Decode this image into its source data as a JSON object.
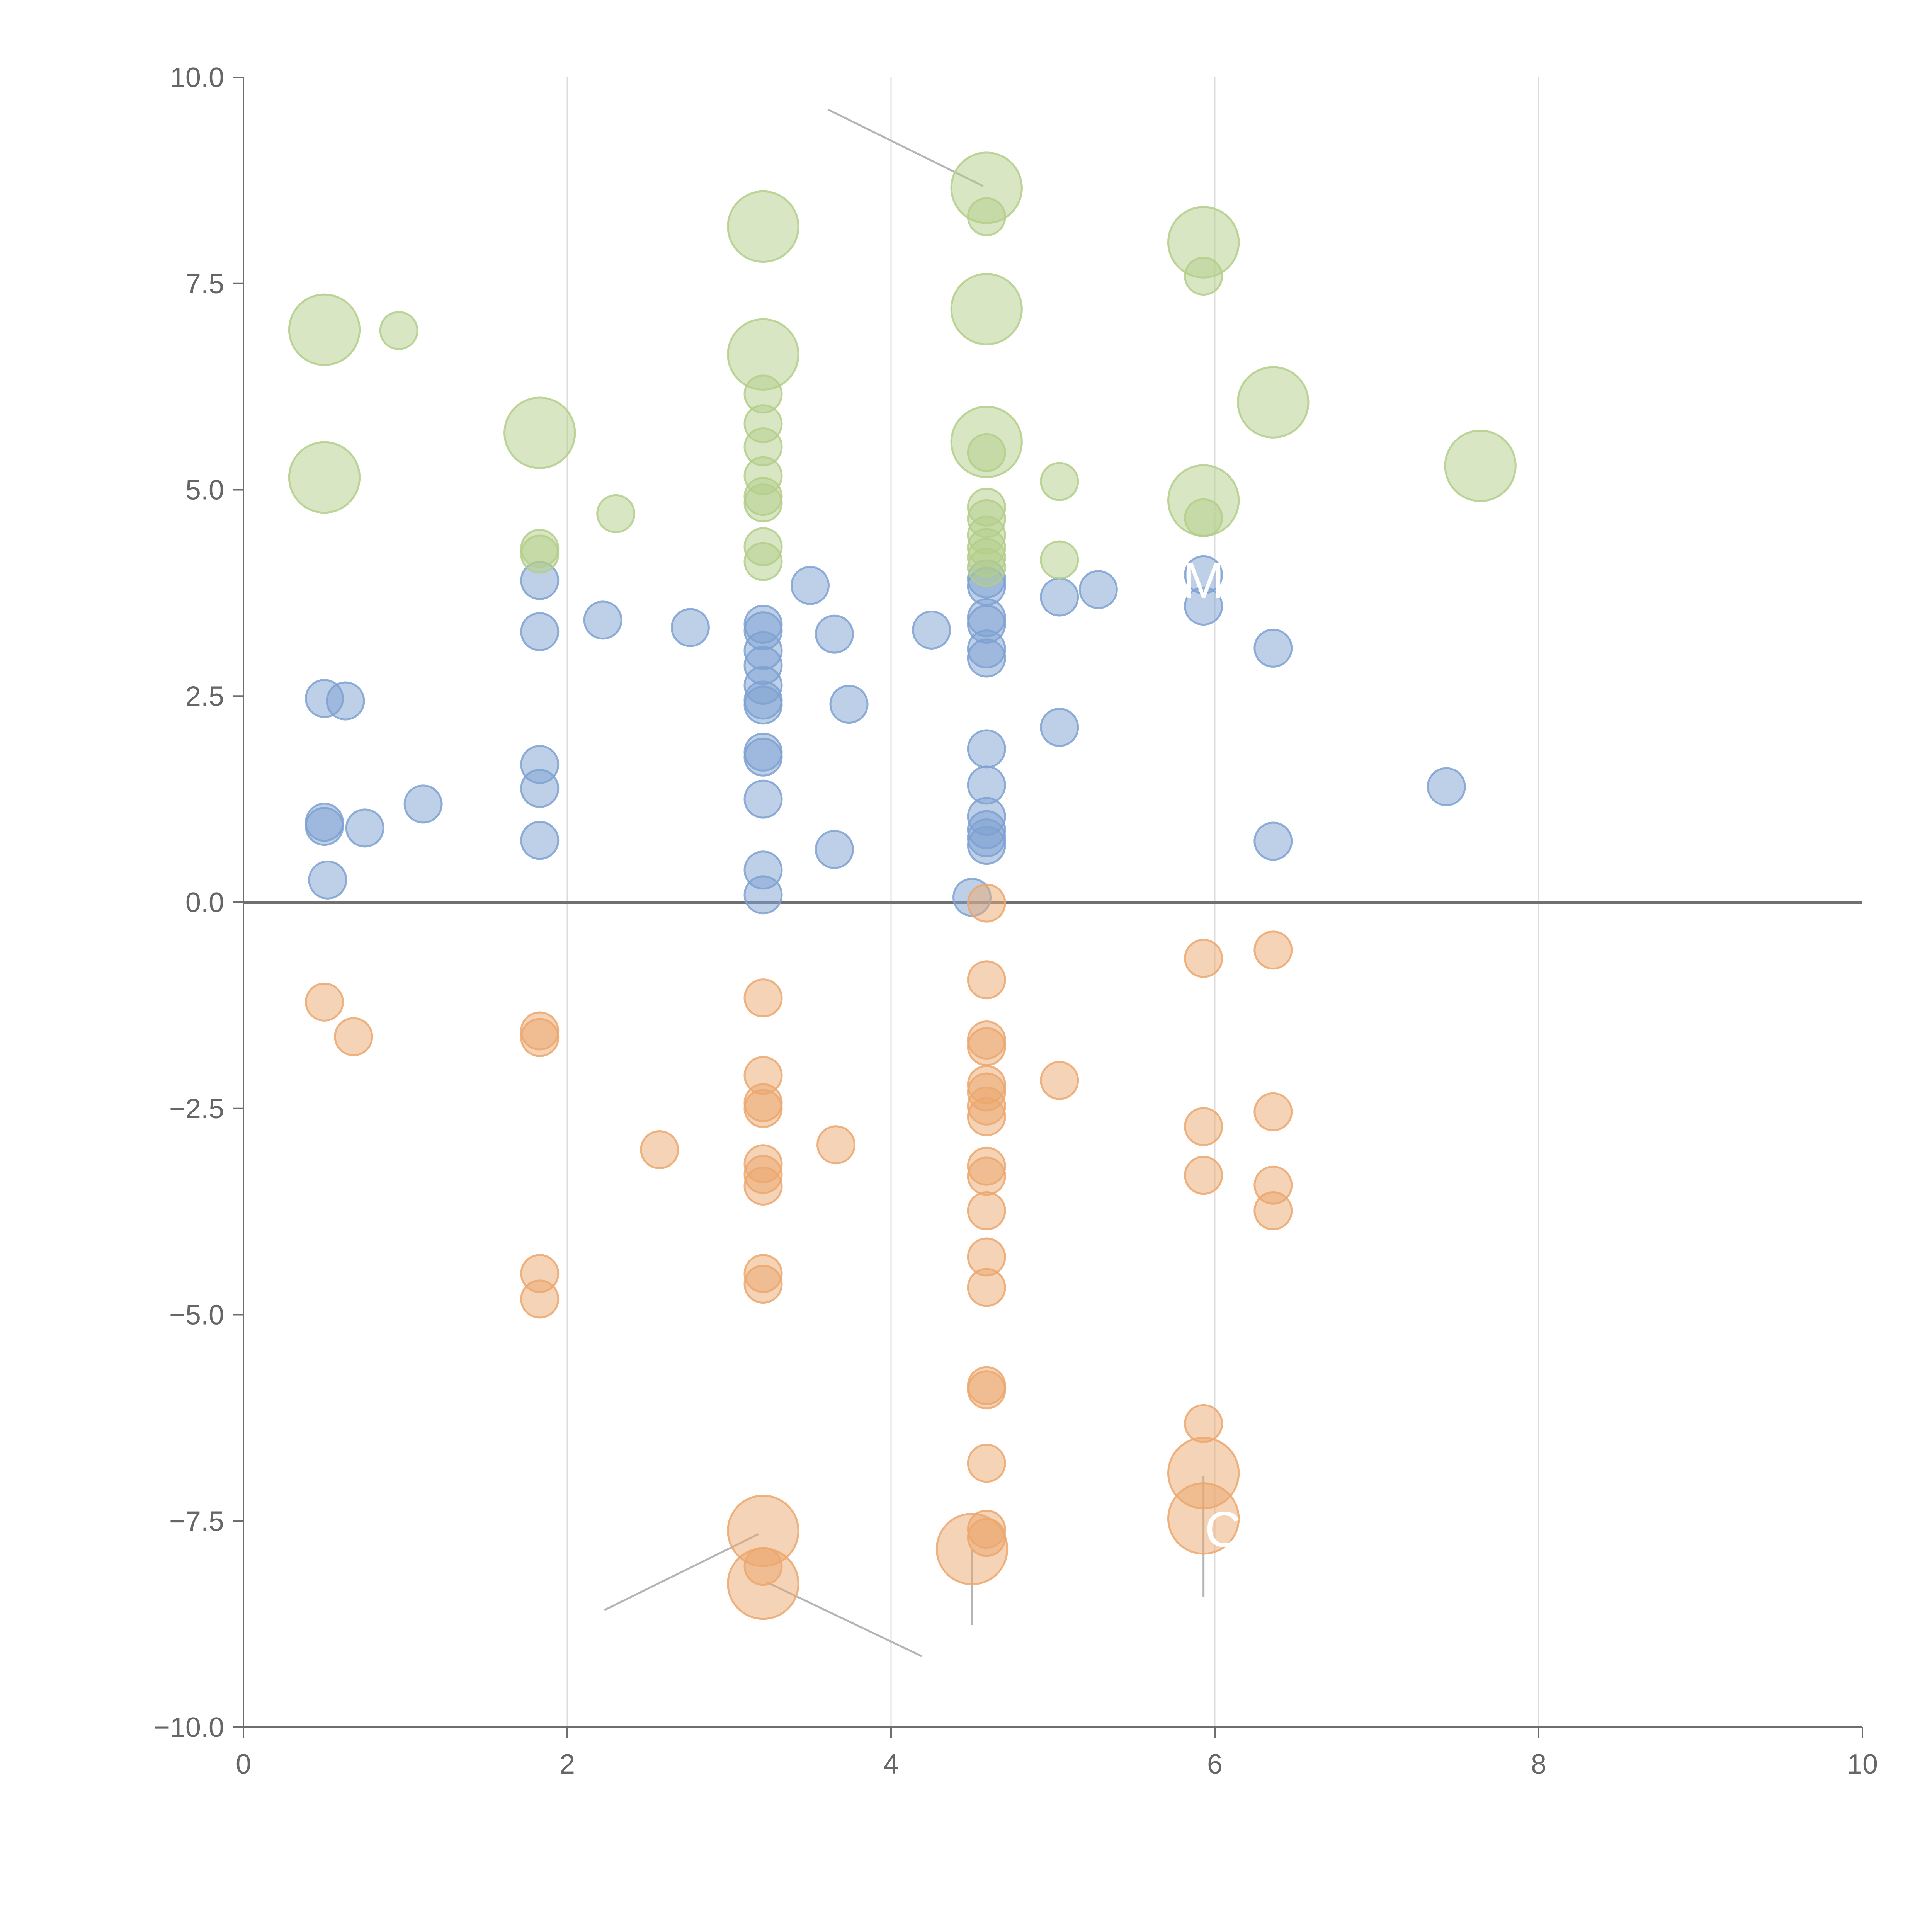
{
  "chart_data": {
    "type": "scatter",
    "title": "",
    "xlabel": "",
    "ylabel": "",
    "xlim": [
      0,
      10
    ],
    "ylim": [
      -10,
      10
    ],
    "x_ticks": [
      0,
      2,
      4,
      6,
      8,
      10
    ],
    "x_tick_labels": [
      "0",
      "2",
      "4",
      "6",
      "8",
      "10"
    ],
    "y_ticks": [
      -10,
      -7.5,
      -5,
      -2.5,
      0,
      2.5,
      5,
      7.5,
      10
    ],
    "y_tick_labels": [
      "−10.0",
      "−7.5",
      "−5.0",
      "−2.5",
      "0.0",
      "2.5",
      "5.0",
      "7.5",
      "10.0"
    ],
    "grid_x": [
      2,
      4,
      6,
      8
    ],
    "baseline_y": 0,
    "legend": "none",
    "colors": {
      "blue": "#7ea1d1",
      "green": "#b3ce8a",
      "orange": "#eba76e",
      "axis": "#6e6e6e",
      "grid": "#dcdcdc"
    },
    "series": [
      {
        "name": "blue",
        "color": "#7ea1d1",
        "points": [
          {
            "x": 0.5,
            "y": 2.47,
            "s": 1
          },
          {
            "x": 0.63,
            "y": 2.44,
            "s": 1
          },
          {
            "x": 0.5,
            "y": 0.97,
            "s": 1
          },
          {
            "x": 0.5,
            "y": 0.92,
            "s": 1
          },
          {
            "x": 0.75,
            "y": 0.9,
            "s": 1
          },
          {
            "x": 1.11,
            "y": 1.19,
            "s": 1
          },
          {
            "x": 0.52,
            "y": 0.27,
            "s": 1
          },
          {
            "x": 1.83,
            "y": 3.9,
            "s": 1
          },
          {
            "x": 1.83,
            "y": 3.28,
            "s": 1
          },
          {
            "x": 2.22,
            "y": 3.42,
            "s": 1
          },
          {
            "x": 2.76,
            "y": 3.33,
            "s": 1
          },
          {
            "x": 1.83,
            "y": 1.67,
            "s": 1
          },
          {
            "x": 1.83,
            "y": 1.38,
            "s": 1
          },
          {
            "x": 1.83,
            "y": 0.75,
            "s": 1
          },
          {
            "x": 3.21,
            "y": 3.37,
            "s": 1
          },
          {
            "x": 3.21,
            "y": 3.29,
            "s": 1
          },
          {
            "x": 3.21,
            "y": 3.05,
            "s": 1
          },
          {
            "x": 3.21,
            "y": 2.87,
            "s": 1
          },
          {
            "x": 3.21,
            "y": 2.63,
            "s": 1
          },
          {
            "x": 3.21,
            "y": 2.45,
            "s": 1
          },
          {
            "x": 3.21,
            "y": 2.39,
            "s": 1
          },
          {
            "x": 3.21,
            "y": 1.82,
            "s": 1
          },
          {
            "x": 3.21,
            "y": 1.76,
            "s": 1
          },
          {
            "x": 3.21,
            "y": 1.25,
            "s": 1
          },
          {
            "x": 3.21,
            "y": 0.39,
            "s": 1
          },
          {
            "x": 3.21,
            "y": 0.09,
            "s": 1
          },
          {
            "x": 3.5,
            "y": 3.84,
            "s": 1
          },
          {
            "x": 3.65,
            "y": 3.25,
            "s": 1
          },
          {
            "x": 3.74,
            "y": 2.4,
            "s": 1
          },
          {
            "x": 3.65,
            "y": 0.64,
            "s": 1
          },
          {
            "x": 4.25,
            "y": 3.3,
            "s": 1
          },
          {
            "x": 4.5,
            "y": 0.06,
            "s": 1
          },
          {
            "x": 4.59,
            "y": 3.92,
            "s": 1
          },
          {
            "x": 4.59,
            "y": 3.83,
            "s": 1
          },
          {
            "x": 4.59,
            "y": 3.45,
            "s": 1
          },
          {
            "x": 4.59,
            "y": 3.37,
            "s": 1
          },
          {
            "x": 4.59,
            "y": 3.07,
            "s": 1
          },
          {
            "x": 4.59,
            "y": 2.96,
            "s": 1
          },
          {
            "x": 4.59,
            "y": 1.86,
            "s": 1
          },
          {
            "x": 4.59,
            "y": 1.42,
            "s": 1
          },
          {
            "x": 4.59,
            "y": 1.04,
            "s": 1
          },
          {
            "x": 4.59,
            "y": 0.88,
            "s": 1
          },
          {
            "x": 4.59,
            "y": 0.78,
            "s": 1
          },
          {
            "x": 4.59,
            "y": 0.69,
            "s": 1
          },
          {
            "x": 5.04,
            "y": 3.7,
            "s": 1
          },
          {
            "x": 5.28,
            "y": 3.79,
            "s": 1
          },
          {
            "x": 5.04,
            "y": 2.12,
            "s": 1
          },
          {
            "x": 5.93,
            "y": 3.97,
            "s": 1
          },
          {
            "x": 5.93,
            "y": 3.59,
            "s": 1
          },
          {
            "x": 6.36,
            "y": 3.08,
            "s": 1
          },
          {
            "x": 6.36,
            "y": 0.74,
            "s": 1
          },
          {
            "x": 7.43,
            "y": 1.4,
            "s": 1
          }
        ]
      },
      {
        "name": "green",
        "color": "#b3ce8a",
        "points": [
          {
            "x": 0.5,
            "y": 6.94,
            "s": 1.9
          },
          {
            "x": 0.96,
            "y": 6.93,
            "s": 1
          },
          {
            "x": 0.5,
            "y": 5.15,
            "s": 1.9
          },
          {
            "x": 1.83,
            "y": 5.69,
            "s": 1.9
          },
          {
            "x": 1.83,
            "y": 4.29,
            "s": 1
          },
          {
            "x": 1.83,
            "y": 4.22,
            "s": 1
          },
          {
            "x": 2.3,
            "y": 4.71,
            "s": 1
          },
          {
            "x": 3.21,
            "y": 8.19,
            "s": 1.9
          },
          {
            "x": 3.21,
            "y": 6.64,
            "s": 1.9
          },
          {
            "x": 3.21,
            "y": 6.16,
            "s": 1
          },
          {
            "x": 3.21,
            "y": 5.8,
            "s": 1
          },
          {
            "x": 3.21,
            "y": 5.52,
            "s": 1
          },
          {
            "x": 3.21,
            "y": 5.17,
            "s": 1
          },
          {
            "x": 3.21,
            "y": 4.92,
            "s": 1
          },
          {
            "x": 3.21,
            "y": 4.84,
            "s": 1
          },
          {
            "x": 3.21,
            "y": 4.31,
            "s": 1
          },
          {
            "x": 3.21,
            "y": 4.13,
            "s": 1
          },
          {
            "x": 4.59,
            "y": 8.66,
            "s": 1.9
          },
          {
            "x": 4.59,
            "y": 8.31,
            "s": 1
          },
          {
            "x": 4.59,
            "y": 7.19,
            "s": 1.9
          },
          {
            "x": 4.59,
            "y": 5.58,
            "s": 1.9
          },
          {
            "x": 4.59,
            "y": 5.45,
            "s": 1
          },
          {
            "x": 4.59,
            "y": 4.79,
            "s": 1
          },
          {
            "x": 4.59,
            "y": 4.65,
            "s": 1
          },
          {
            "x": 4.59,
            "y": 4.45,
            "s": 1
          },
          {
            "x": 4.59,
            "y": 4.3,
            "s": 1
          },
          {
            "x": 4.59,
            "y": 4.18,
            "s": 1
          },
          {
            "x": 4.59,
            "y": 4.06,
            "s": 1
          },
          {
            "x": 5.04,
            "y": 5.1,
            "s": 1
          },
          {
            "x": 5.04,
            "y": 4.15,
            "s": 1
          },
          {
            "x": 5.93,
            "y": 8.0,
            "s": 1.9
          },
          {
            "x": 5.93,
            "y": 7.59,
            "s": 1
          },
          {
            "x": 5.93,
            "y": 4.87,
            "s": 1.9
          },
          {
            "x": 5.93,
            "y": 4.66,
            "s": 1
          },
          {
            "x": 6.36,
            "y": 6.06,
            "s": 1.9
          },
          {
            "x": 7.64,
            "y": 5.29,
            "s": 1.9
          }
        ]
      },
      {
        "name": "orange",
        "color": "#eba76e",
        "points": [
          {
            "x": 0.5,
            "y": -1.21,
            "s": 1
          },
          {
            "x": 0.68,
            "y": -1.63,
            "s": 1
          },
          {
            "x": 1.83,
            "y": -1.56,
            "s": 1
          },
          {
            "x": 1.83,
            "y": -1.64,
            "s": 1
          },
          {
            "x": 1.83,
            "y": -4.5,
            "s": 1
          },
          {
            "x": 1.83,
            "y": -4.81,
            "s": 1
          },
          {
            "x": 2.57,
            "y": -3.0,
            "s": 1
          },
          {
            "x": 3.21,
            "y": -1.16,
            "s": 1
          },
          {
            "x": 3.21,
            "y": -2.1,
            "s": 1
          },
          {
            "x": 3.21,
            "y": -2.43,
            "s": 1
          },
          {
            "x": 3.21,
            "y": -2.5,
            "s": 1
          },
          {
            "x": 3.21,
            "y": -3.17,
            "s": 1
          },
          {
            "x": 3.21,
            "y": -3.3,
            "s": 1
          },
          {
            "x": 3.21,
            "y": -3.44,
            "s": 1
          },
          {
            "x": 3.21,
            "y": -4.5,
            "s": 1
          },
          {
            "x": 3.21,
            "y": -4.63,
            "s": 1
          },
          {
            "x": 3.21,
            "y": -7.62,
            "s": 1.9
          },
          {
            "x": 3.21,
            "y": -8.05,
            "s": 1
          },
          {
            "x": 3.21,
            "y": -8.26,
            "s": 1.9
          },
          {
            "x": 3.66,
            "y": -2.94,
            "s": 1
          },
          {
            "x": 4.5,
            "y": -7.84,
            "s": 1.9
          },
          {
            "x": 4.59,
            "y": -0.01,
            "s": 1
          },
          {
            "x": 4.59,
            "y": -0.94,
            "s": 1
          },
          {
            "x": 4.59,
            "y": -1.67,
            "s": 1
          },
          {
            "x": 4.59,
            "y": -1.75,
            "s": 1
          },
          {
            "x": 4.59,
            "y": -2.21,
            "s": 1
          },
          {
            "x": 4.59,
            "y": -2.3,
            "s": 1
          },
          {
            "x": 4.59,
            "y": -2.47,
            "s": 1
          },
          {
            "x": 4.59,
            "y": -2.6,
            "s": 1
          },
          {
            "x": 4.59,
            "y": -3.2,
            "s": 1
          },
          {
            "x": 4.59,
            "y": -3.32,
            "s": 1
          },
          {
            "x": 4.59,
            "y": -3.74,
            "s": 1
          },
          {
            "x": 4.59,
            "y": -4.3,
            "s": 1
          },
          {
            "x": 4.59,
            "y": -4.67,
            "s": 1
          },
          {
            "x": 4.59,
            "y": -5.86,
            "s": 1
          },
          {
            "x": 4.59,
            "y": -5.91,
            "s": 1
          },
          {
            "x": 4.59,
            "y": -6.8,
            "s": 1
          },
          {
            "x": 4.59,
            "y": -7.6,
            "s": 1
          },
          {
            "x": 4.59,
            "y": -7.7,
            "s": 1
          },
          {
            "x": 5.04,
            "y": -2.16,
            "s": 1
          },
          {
            "x": 5.93,
            "y": -0.68,
            "s": 1
          },
          {
            "x": 5.93,
            "y": -2.72,
            "s": 1
          },
          {
            "x": 5.93,
            "y": -3.31,
            "s": 1
          },
          {
            "x": 5.93,
            "y": -6.32,
            "s": 1
          },
          {
            "x": 5.93,
            "y": -6.92,
            "s": 1.9
          },
          {
            "x": 5.93,
            "y": -7.47,
            "s": 1.9
          },
          {
            "x": 6.36,
            "y": -0.58,
            "s": 1
          },
          {
            "x": 6.36,
            "y": -2.54,
            "s": 1
          },
          {
            "x": 6.36,
            "y": -3.43,
            "s": 1
          },
          {
            "x": 6.36,
            "y": -3.74,
            "s": 1
          }
        ]
      }
    ],
    "leader_lines": [
      {
        "x1": 3.61,
        "y1": 9.61,
        "x2": 4.57,
        "y2": 8.68,
        "tone": "gray"
      },
      {
        "x1": 2.23,
        "y1": -8.58,
        "x2": 3.18,
        "y2": -7.66,
        "tone": "gray"
      },
      {
        "x1": 3.23,
        "y1": -8.24,
        "x2": 4.19,
        "y2": -9.14,
        "tone": "gray"
      },
      {
        "x1": 4.5,
        "y1": -7.85,
        "x2": 4.5,
        "y2": -8.76,
        "tone": "gray"
      },
      {
        "x1": 5.93,
        "y1": -6.95,
        "x2": 5.93,
        "y2": -8.42,
        "tone": "gray"
      },
      {
        "x1": 0.52,
        "y1": 5.17,
        "x2": 0.71,
        "y2": 5.39,
        "tone": "light"
      },
      {
        "x1": 1.86,
        "y1": 5.74,
        "x2": 2.0,
        "y2": 5.92,
        "tone": "light"
      },
      {
        "x1": 3.26,
        "y1": 6.66,
        "x2": 3.42,
        "y2": 6.72,
        "tone": "light"
      },
      {
        "x1": 4.6,
        "y1": 5.6,
        "x2": 4.79,
        "y2": 5.5,
        "tone": "light"
      },
      {
        "x1": 5.95,
        "y1": 4.83,
        "x2": 6.06,
        "y2": 4.62,
        "tone": "light"
      },
      {
        "x1": 6.36,
        "y1": 6.1,
        "x2": 6.27,
        "y2": 6.4,
        "tone": "light"
      },
      {
        "x1": 7.64,
        "y1": 5.33,
        "x2": 7.6,
        "y2": 5.6,
        "tone": "light"
      }
    ],
    "annotations": [
      {
        "text": "M",
        "x": 5.93,
        "y": 3.9
      },
      {
        "text": "C",
        "x": 6.05,
        "y": -7.6
      }
    ]
  }
}
